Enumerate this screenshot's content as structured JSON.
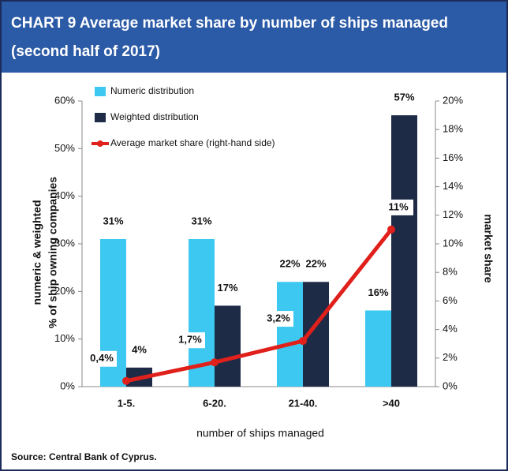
{
  "chart_data": {
    "type": "bar",
    "title": "CHART 9  Average market share by number of ships managed",
    "subtitle": "(second half of 2017)",
    "categories": [
      "1-5.",
      "6-20.",
      "21-40.",
      ">40"
    ],
    "series": [
      {
        "name": "Numeric distribution",
        "color": "#3cc8f0",
        "type": "bar",
        "values": [
          31,
          31,
          22,
          16
        ],
        "value_labels": [
          "31%",
          "31%",
          "22%",
          "16%"
        ]
      },
      {
        "name": "Weighted distribution",
        "color": "#1e2b47",
        "type": "bar",
        "values": [
          4,
          17,
          22,
          57
        ],
        "value_labels": [
          "4%",
          "17%",
          "22%",
          "57%"
        ]
      },
      {
        "name": "Average market share (right-hand side)",
        "color": "#e0201b",
        "type": "line",
        "axis": "y2",
        "values": [
          0.4,
          1.7,
          3.2,
          11
        ],
        "value_labels": [
          "0,4%",
          "1,7%",
          "3,2%",
          "11%"
        ]
      }
    ],
    "ylim": [
      0,
      60
    ],
    "yticks": [
      {
        "value": 0,
        "label": "0%"
      },
      {
        "value": 10,
        "label": "10%"
      },
      {
        "value": 20,
        "label": "20%"
      },
      {
        "value": 30,
        "label": "30%"
      },
      {
        "value": 40,
        "label": "40%"
      },
      {
        "value": 50,
        "label": "50%"
      },
      {
        "value": 60,
        "label": "60%"
      }
    ],
    "y2lim": [
      0,
      20
    ],
    "y2ticks": [
      {
        "value": 0,
        "label": "0%"
      },
      {
        "value": 2,
        "label": "2%"
      },
      {
        "value": 4,
        "label": "4%"
      },
      {
        "value": 6,
        "label": "6%"
      },
      {
        "value": 8,
        "label": "8%"
      },
      {
        "value": 10,
        "label": "10%"
      },
      {
        "value": 12,
        "label": "12%"
      },
      {
        "value": 14,
        "label": "14%"
      },
      {
        "value": 16,
        "label": "16%"
      },
      {
        "value": 18,
        "label": "18%"
      },
      {
        "value": 20,
        "label": "20%"
      }
    ],
    "ylabel": [
      "numeric & weighted",
      "% of ship owning companies"
    ],
    "y2label": "market share",
    "xlabel": "number of ships managed",
    "source": "Source: Central Bank of Cyprus."
  }
}
